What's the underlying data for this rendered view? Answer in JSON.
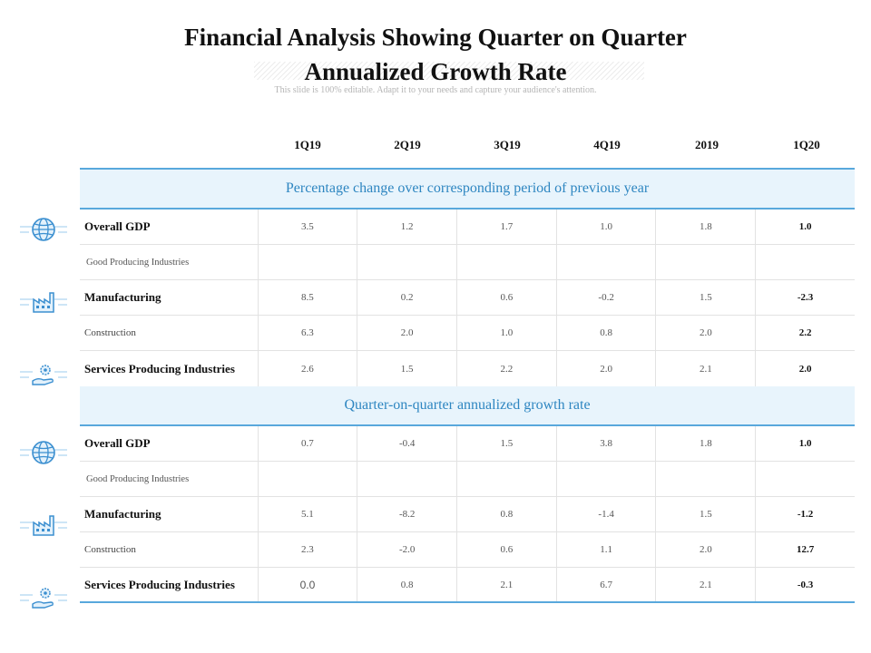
{
  "title": {
    "line1": "Financial Analysis Showing Quarter on Quarter",
    "line2": "Annualized Growth Rate"
  },
  "subtitle": "This slide is 100% editable. Adapt it to your needs and capture your audience's attention.",
  "columns": [
    "1Q19",
    "2Q19",
    "3Q19",
    "4Q19",
    "2019",
    "1Q20"
  ],
  "sections": [
    {
      "heading": "Percentage change over corresponding period of previous year",
      "rows": [
        {
          "label": "Overall GDP",
          "style": "bold",
          "icon": "globe-icon",
          "values": [
            "3.5",
            "1.2",
            "1.7",
            "1.0",
            "1.8",
            "1.0"
          ]
        },
        {
          "label": "Good Producing Industries",
          "style": "sub",
          "icon": "",
          "values": [
            "",
            "",
            "",
            "",
            "",
            ""
          ]
        },
        {
          "label": "Manufacturing",
          "style": "bold",
          "icon": "factory-icon",
          "values": [
            "8.5",
            "0.2",
            "0.6",
            "-0.2",
            "1.5",
            "-2.3"
          ]
        },
        {
          "label": "Construction",
          "style": "plain",
          "icon": "",
          "values": [
            "6.3",
            "2.0",
            "1.0",
            "0.8",
            "2.0",
            "2.2"
          ]
        },
        {
          "label": "Services Producing Industries",
          "style": "bold",
          "icon": "hand-gear-icon",
          "values": [
            "2.6",
            "1.5",
            "2.2",
            "2.0",
            "2.1",
            "2.0"
          ]
        }
      ]
    },
    {
      "heading": "Quarter-on-quarter annualized growth rate",
      "rows": [
        {
          "label": "Overall GDP",
          "style": "bold",
          "icon": "globe-icon",
          "values": [
            "0.7",
            "-0.4",
            "1.5",
            "3.8",
            "1.8",
            "1.0"
          ]
        },
        {
          "label": "Good Producing Industries",
          "style": "sub",
          "icon": "",
          "values": [
            "",
            "",
            "",
            "",
            "",
            ""
          ]
        },
        {
          "label": "Manufacturing",
          "style": "bold",
          "icon": "factory-icon",
          "values": [
            "5.1",
            "-8.2",
            "0.8",
            "-1.4",
            "1.5",
            "-1.2"
          ]
        },
        {
          "label": "Construction",
          "style": "plain",
          "icon": "",
          "values": [
            "2.3",
            "-2.0",
            "0.6",
            "1.1",
            "2.0",
            "12.7"
          ]
        },
        {
          "label": "Services Producing Industries",
          "style": "bold",
          "icon": "hand-gear-icon",
          "values": [
            "0.0",
            "0.8",
            "2.1",
            "6.7",
            "2.1",
            "-0.3"
          ]
        }
      ]
    }
  ],
  "colors": {
    "accent": "#58a8dc",
    "heading_text": "#2e86c1",
    "heading_bg": "#e8f4fc",
    "icon": "#3b8fd0"
  }
}
